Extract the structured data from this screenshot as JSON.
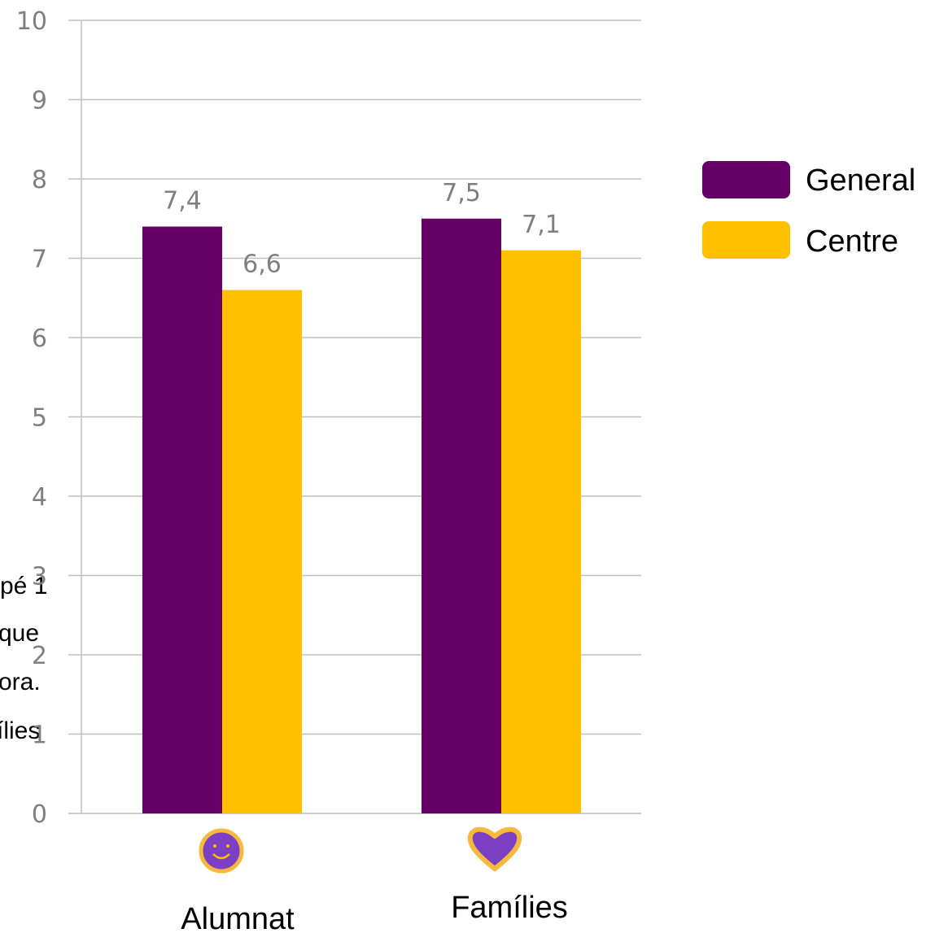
{
  "chart_data": {
    "type": "bar",
    "categories": [
      "Alumnat",
      "Famílies"
    ],
    "series": [
      {
        "name": "General",
        "color": "#660066",
        "values": [
          7.4,
          7.5
        ],
        "labels": [
          "7,4",
          "7,5"
        ]
      },
      {
        "name": "Centre",
        "color": "#ffc000",
        "values": [
          6.6,
          7.1
        ],
        "labels": [
          "6,6",
          "7,1"
        ]
      }
    ],
    "ylim": [
      0,
      10
    ],
    "yticks": [
      "0",
      "1",
      "2",
      "3",
      "4",
      "5",
      "6",
      "7",
      "8",
      "9",
      "10"
    ],
    "grid": true,
    "legend_position": "right",
    "category_icons": [
      "smiley-icon",
      "heart-icon"
    ]
  },
  "background_fragments": [
    "pé 1",
    "que",
    "ora.",
    "ílies"
  ]
}
